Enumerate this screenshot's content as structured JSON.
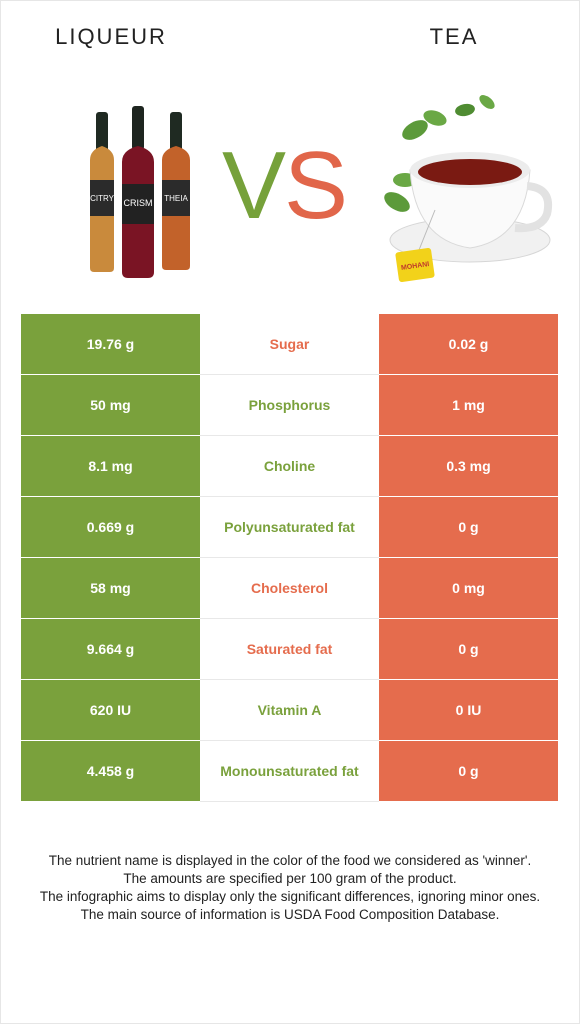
{
  "header": {
    "left_title": "LIQUEUR",
    "right_title": "TEA",
    "vs_v": "V",
    "vs_s": "S",
    "bottle_labels": [
      "CITRY",
      "CRISM",
      "THEIA"
    ],
    "bag_label": "MOHANI"
  },
  "colors": {
    "left_winner": "#7aa13c",
    "right_winner": "#e56c4d"
  },
  "rows": [
    {
      "left": "19.76 g",
      "nutrient": "Sugar",
      "right": "0.02 g",
      "winner": "right"
    },
    {
      "left": "50 mg",
      "nutrient": "Phosphorus",
      "right": "1 mg",
      "winner": "left"
    },
    {
      "left": "8.1 mg",
      "nutrient": "Choline",
      "right": "0.3 mg",
      "winner": "left"
    },
    {
      "left": "0.669 g",
      "nutrient": "Polyunsaturated fat",
      "right": "0 g",
      "winner": "left"
    },
    {
      "left": "58 mg",
      "nutrient": "Cholesterol",
      "right": "0 mg",
      "winner": "right"
    },
    {
      "left": "9.664 g",
      "nutrient": "Saturated fat",
      "right": "0 g",
      "winner": "right"
    },
    {
      "left": "620 IU",
      "nutrient": "Vitamin A",
      "right": "0 IU",
      "winner": "left"
    },
    {
      "left": "4.458 g",
      "nutrient": "Monounsaturated fat",
      "right": "0 g",
      "winner": "left"
    }
  ],
  "footer": {
    "line1": "The nutrient name is displayed in the color of the food we considered as 'winner'.",
    "line2": "The amounts are specified per 100 gram of the product.",
    "line3": "The infographic aims to display only the significant differences, ignoring minor ones.",
    "line4": "The main source of information is USDA Food Composition Database."
  }
}
